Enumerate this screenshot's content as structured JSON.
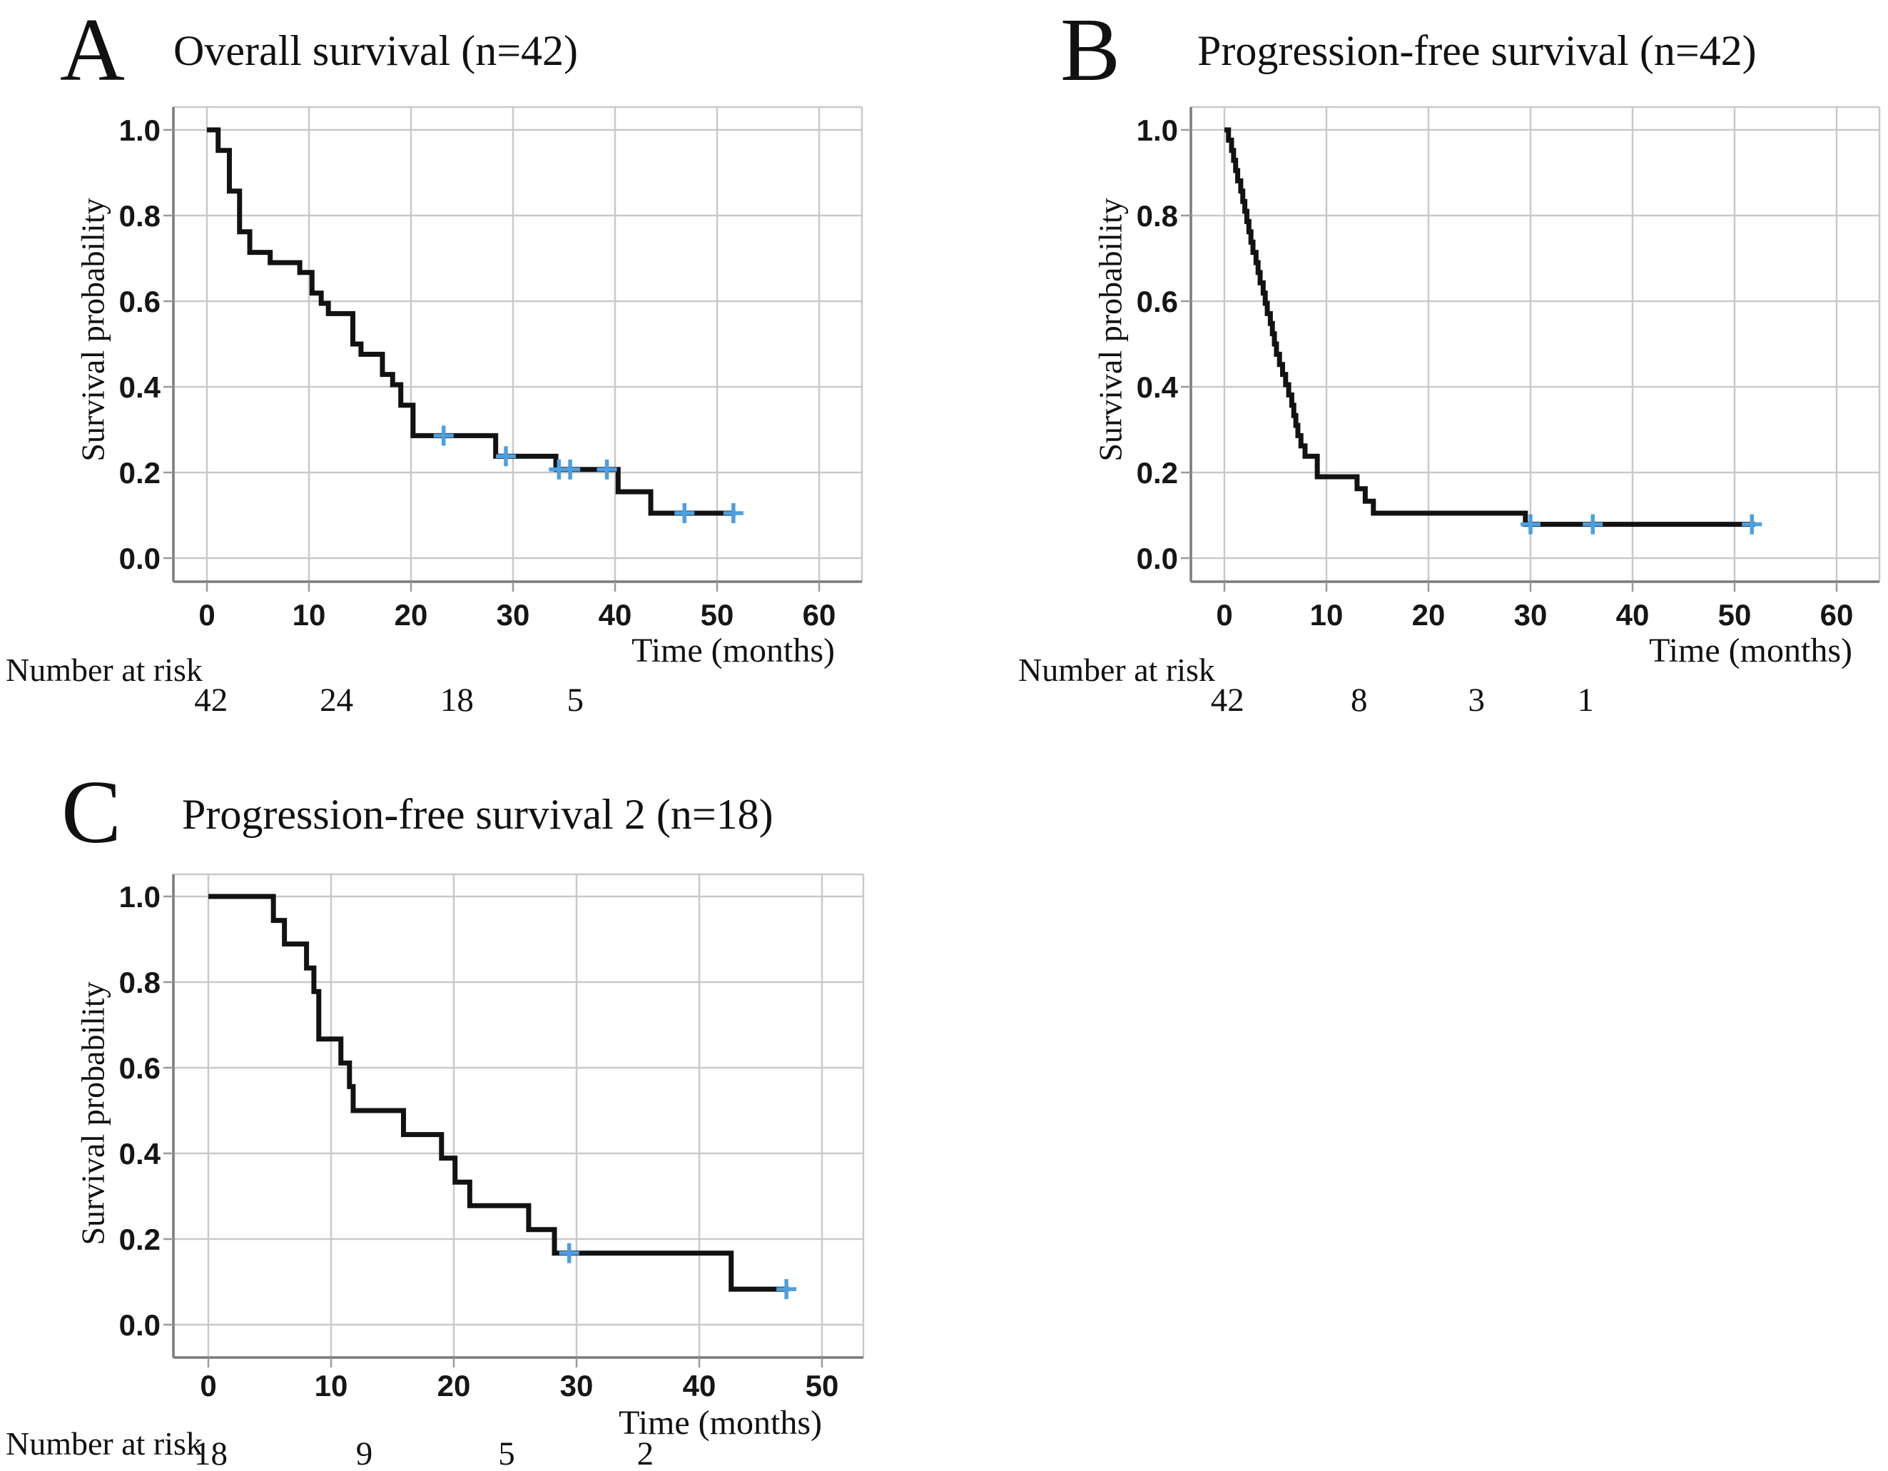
{
  "figure": {
    "background": "#ffffff",
    "description": "Three Kaplan-Meier survival curve panels"
  },
  "colors": {
    "curve": "#121212",
    "grid": "#c9c9c9",
    "axis": "#7a7a7a",
    "tick_mark": "#9a9a9a",
    "censor": "#4d9fe0",
    "text": "#111111"
  },
  "panels": [
    {
      "letter": "A",
      "title": "Overall survival (n=42)",
      "y_label": "Survival probability",
      "x_label": "Time (months)",
      "risk_label": "Number at risk"
    },
    {
      "letter": "B",
      "title": "Progression-free survival (n=42)",
      "y_label": "Survival probability",
      "x_label": "Time (months)",
      "risk_label": "Number at risk"
    },
    {
      "letter": "C",
      "title": "Progression-free survival 2 (n=18)",
      "y_label": "Survival probability",
      "x_label": "Time (months)",
      "risk_label": "Number at risk"
    }
  ],
  "chart_data": [
    {
      "type": "line",
      "style": "kaplan-meier-step",
      "title": "Overall survival (n=42)",
      "xlabel": "Time (months)",
      "ylabel": "Survival probability",
      "x_ticks": [
        0,
        10,
        20,
        30,
        40,
        50,
        60
      ],
      "y_ticks": [
        "0.0",
        "0.2",
        "0.4",
        "0.6",
        "0.8",
        "1.0"
      ],
      "xlim": [
        -3.3,
        64.5
      ],
      "ylim": [
        -0.055,
        1.055
      ],
      "grid": true,
      "steps": [
        [
          0,
          1.0
        ],
        [
          1.1,
          0.952
        ],
        [
          2.2,
          0.857
        ],
        [
          3.2,
          0.762
        ],
        [
          4.2,
          0.714
        ],
        [
          6.2,
          0.69
        ],
        [
          9.1,
          0.667
        ],
        [
          10.3,
          0.619
        ],
        [
          11.2,
          0.595
        ],
        [
          11.9,
          0.571
        ],
        [
          14.3,
          0.5
        ],
        [
          15.1,
          0.476
        ],
        [
          17.2,
          0.429
        ],
        [
          18.2,
          0.405
        ],
        [
          19.0,
          0.357
        ],
        [
          20.2,
          0.286
        ],
        [
          28.3,
          0.238
        ],
        [
          34.2,
          0.207
        ],
        [
          40.3,
          0.155
        ],
        [
          43.5,
          0.105
        ]
      ],
      "end_time": 51.8,
      "censors": [
        [
          23.2,
          0.286
        ],
        [
          29.3,
          0.238
        ],
        [
          34.5,
          0.207
        ],
        [
          35.6,
          0.207
        ],
        [
          39.2,
          0.207
        ],
        [
          46.8,
          0.105
        ],
        [
          51.6,
          0.105
        ]
      ],
      "risk": {
        "label": "Number at risk",
        "times": [
          0.4,
          12.7,
          24.5,
          36.1
        ],
        "values": [
          "42",
          "24",
          "18",
          "5"
        ]
      }
    },
    {
      "type": "line",
      "style": "kaplan-meier-step",
      "title": "Progression-free survival (n=42)",
      "xlabel": "Time (months)",
      "ylabel": "Survival probability",
      "x_ticks": [
        0,
        10,
        20,
        30,
        40,
        50,
        60
      ],
      "y_ticks": [
        "0.0",
        "0.2",
        "0.4",
        "0.6",
        "0.8",
        "1.0"
      ],
      "xlim": [
        -3.3,
        64.2
      ],
      "ylim": [
        -0.055,
        1.055
      ],
      "grid": true,
      "steps": [
        [
          0,
          1.0
        ],
        [
          0.4,
          0.976
        ],
        [
          0.7,
          0.952
        ],
        [
          0.9,
          0.929
        ],
        [
          1.1,
          0.905
        ],
        [
          1.3,
          0.881
        ],
        [
          1.6,
          0.857
        ],
        [
          1.8,
          0.833
        ],
        [
          2.0,
          0.81
        ],
        [
          2.2,
          0.786
        ],
        [
          2.4,
          0.762
        ],
        [
          2.6,
          0.738
        ],
        [
          2.8,
          0.714
        ],
        [
          3.1,
          0.69
        ],
        [
          3.3,
          0.667
        ],
        [
          3.5,
          0.643
        ],
        [
          3.8,
          0.619
        ],
        [
          4.0,
          0.595
        ],
        [
          4.2,
          0.571
        ],
        [
          4.5,
          0.548
        ],
        [
          4.7,
          0.524
        ],
        [
          4.9,
          0.5
        ],
        [
          5.1,
          0.476
        ],
        [
          5.4,
          0.452
        ],
        [
          5.7,
          0.429
        ],
        [
          6.0,
          0.405
        ],
        [
          6.3,
          0.381
        ],
        [
          6.6,
          0.357
        ],
        [
          6.8,
          0.333
        ],
        [
          7.0,
          0.31
        ],
        [
          7.2,
          0.286
        ],
        [
          7.5,
          0.262
        ],
        [
          7.9,
          0.238
        ],
        [
          9.1,
          0.19
        ],
        [
          13.0,
          0.162
        ],
        [
          13.8,
          0.133
        ],
        [
          14.6,
          0.105
        ],
        [
          29.5,
          0.079
        ]
      ],
      "end_time": 52.0,
      "censors": [
        [
          30.0,
          0.079
        ],
        [
          36.1,
          0.079
        ],
        [
          51.7,
          0.079
        ]
      ],
      "risk": {
        "label": "Number at risk",
        "times": [
          0.3,
          13.2,
          24.7,
          35.4
        ],
        "values": [
          "42",
          "8",
          "3",
          "1"
        ]
      }
    },
    {
      "type": "line",
      "style": "kaplan-meier-step",
      "title": "Progression-free survival 2 (n=18)",
      "xlabel": "Time (months)",
      "ylabel": "Survival probability",
      "x_ticks": [
        0,
        10,
        20,
        30,
        40,
        50
      ],
      "y_ticks": [
        "0.0",
        "0.2",
        "0.4",
        "0.6",
        "0.8",
        "1.0"
      ],
      "xlim": [
        -2.9,
        53.4
      ],
      "ylim": [
        -0.055,
        1.055
      ],
      "grid": true,
      "steps": [
        [
          0,
          1.0
        ],
        [
          5.3,
          0.944
        ],
        [
          6.2,
          0.889
        ],
        [
          8.0,
          0.833
        ],
        [
          8.6,
          0.778
        ],
        [
          9.0,
          0.667
        ],
        [
          10.8,
          0.611
        ],
        [
          11.5,
          0.556
        ],
        [
          11.8,
          0.5
        ],
        [
          15.9,
          0.444
        ],
        [
          19.0,
          0.389
        ],
        [
          20.1,
          0.333
        ],
        [
          21.3,
          0.278
        ],
        [
          26.1,
          0.222
        ],
        [
          28.2,
          0.167
        ],
        [
          42.6,
          0.083
        ]
      ],
      "end_time": 47.3,
      "censors": [
        [
          29.4,
          0.167
        ],
        [
          47.1,
          0.083
        ]
      ],
      "risk": {
        "label": "Number at risk",
        "times": [
          0.2,
          12.7,
          24.3,
          35.6
        ],
        "values": [
          "18",
          "9",
          "5",
          "2"
        ]
      }
    }
  ]
}
